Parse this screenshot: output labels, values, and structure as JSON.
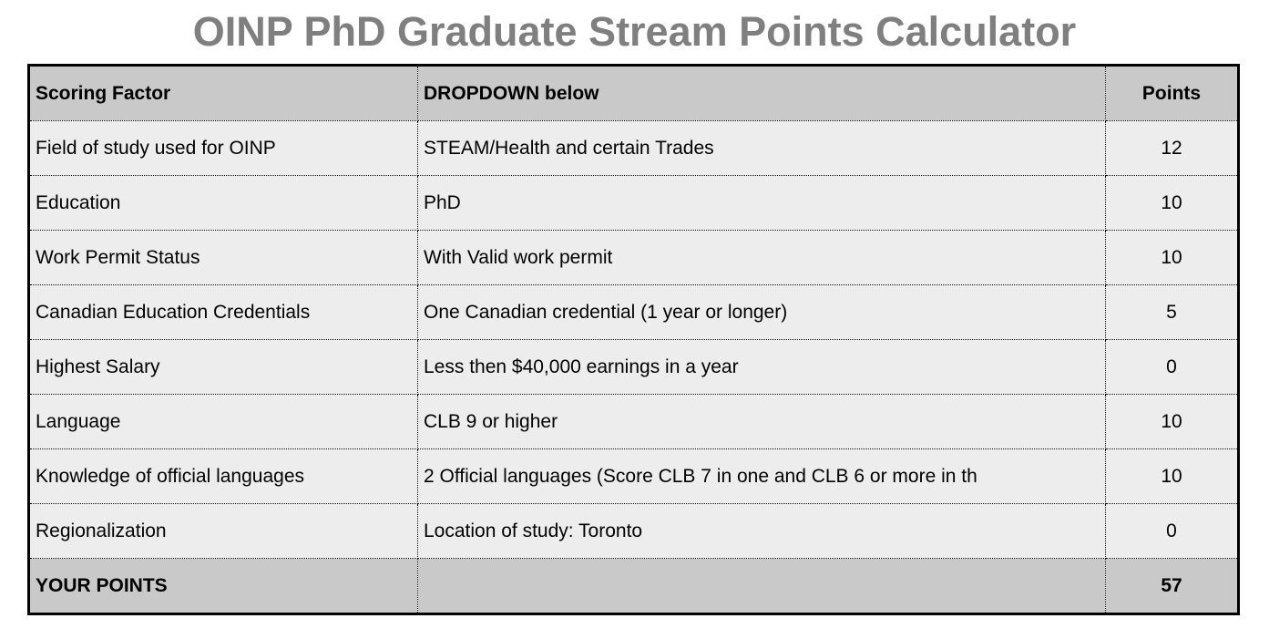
{
  "title": "OINP PhD Graduate Stream Points Calculator",
  "table": {
    "headers": {
      "factor": "Scoring Factor",
      "dropdown": "DROPDOWN below",
      "points": "Points"
    },
    "rows": [
      {
        "factor": "Field of study used for OINP",
        "selection": "STEAM/Health and certain Trades",
        "points": "12"
      },
      {
        "factor": "Education",
        "selection": "PhD",
        "points": "10"
      },
      {
        "factor": "Work Permit Status",
        "selection": "With Valid work permit",
        "points": "10"
      },
      {
        "factor": "Canadian Education Credentials",
        "selection": "One Canadian credential (1 year or longer)",
        "points": "5"
      },
      {
        "factor": "Highest Salary",
        "selection": "Less then $40,000 earnings in a year",
        "points": "0"
      },
      {
        "factor": "Language",
        "selection": "CLB 9 or higher",
        "points": "10"
      },
      {
        "factor": "Knowledge of official languages",
        "selection": "2 Official languages (Score CLB 7 in one and CLB 6 or more in th",
        "points": "10"
      },
      {
        "factor": "Regionalization",
        "selection": "Location of study: Toronto",
        "points": "0"
      }
    ],
    "footer": {
      "label": "YOUR POINTS",
      "selection": "",
      "total": "57"
    }
  },
  "colors": {
    "header_bg": "#c9c9c9",
    "row_bg": "#ededed",
    "title_color": "#7f7f7f",
    "border": "#000000"
  }
}
